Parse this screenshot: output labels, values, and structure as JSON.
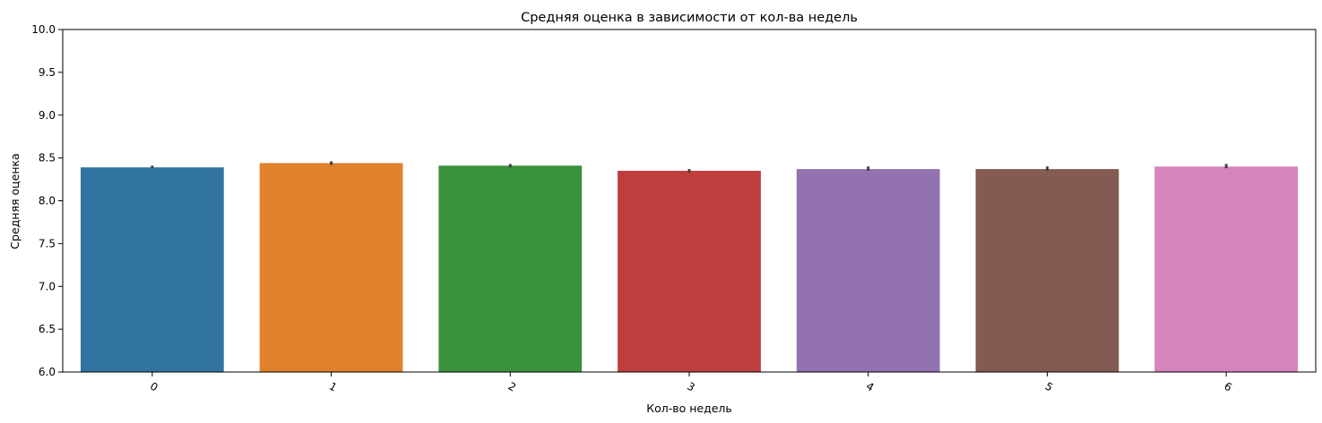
{
  "chart_data": {
    "type": "bar",
    "title": "Средняя оценка в зависимости от кол-ва недель",
    "xlabel": "Кол-во недель",
    "ylabel": "Средняя оценка",
    "categories": [
      "0",
      "1",
      "2",
      "3",
      "4",
      "5",
      "6"
    ],
    "values": [
      8.39,
      8.44,
      8.41,
      8.35,
      8.37,
      8.37,
      8.4
    ],
    "error_bars": [
      [
        8.38,
        8.41
      ],
      [
        8.42,
        8.46
      ],
      [
        8.39,
        8.43
      ],
      [
        8.33,
        8.37
      ],
      [
        8.35,
        8.4
      ],
      [
        8.35,
        8.4
      ],
      [
        8.38,
        8.43
      ]
    ],
    "colors": [
      "#3274a1",
      "#e1812c",
      "#3a923a",
      "#c03d3e",
      "#9372b2",
      "#845b53",
      "#d684bd"
    ],
    "ylim": [
      6.0,
      10.0
    ],
    "yticks": [
      "6.0",
      "6.5",
      "7.0",
      "7.5",
      "8.0",
      "8.5",
      "9.0",
      "9.5",
      "10.0"
    ],
    "grid": false,
    "legend": "none"
  }
}
